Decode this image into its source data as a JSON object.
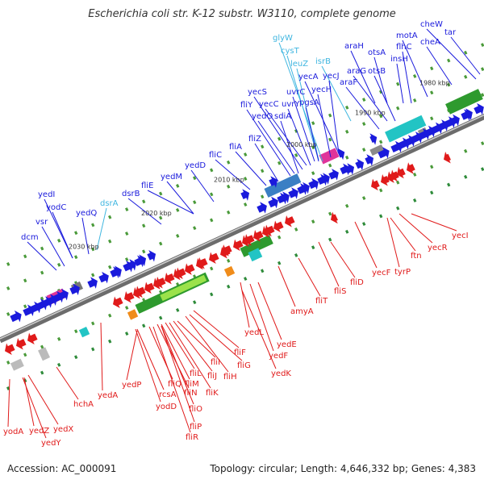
{
  "header": {
    "title": "Escherichia coli str. K-12 substr. W3110, complete genome"
  },
  "footer": {
    "accession": "Accession: AC_000091",
    "topology": "Topology: circular; Length: 4,646,332 bp; Genes: 4,383"
  },
  "colors": {
    "plus_strand_label": "#1a1adc",
    "rna_label": "#3fb6e0",
    "minus_strand_label": "#e01a1a",
    "backbone": "#888888"
  },
  "kbp_ticks": [
    "1980 kbp",
    "1990 kbp",
    "2000 kbp",
    "2010 kbp",
    "2020 kbp",
    "2030 kbp"
  ],
  "genes_top": [
    {
      "name": "cheW",
      "color": "blue"
    },
    {
      "name": "tar",
      "color": "blue"
    },
    {
      "name": "motA",
      "color": "blue"
    },
    {
      "name": "cheA",
      "color": "blue"
    },
    {
      "name": "flhC",
      "color": "blue"
    },
    {
      "name": "araH",
      "color": "blue"
    },
    {
      "name": "otsA",
      "color": "blue"
    },
    {
      "name": "insH",
      "color": "blue"
    },
    {
      "name": "araG",
      "color": "blue"
    },
    {
      "name": "otsB",
      "color": "blue"
    },
    {
      "name": "araF",
      "color": "blue"
    },
    {
      "name": "glyW",
      "color": "rna"
    },
    {
      "name": "cysT",
      "color": "rna"
    },
    {
      "name": "leuZ",
      "color": "rna"
    },
    {
      "name": "isrB",
      "color": "rna"
    },
    {
      "name": "yecA",
      "color": "blue"
    },
    {
      "name": "yecJ",
      "color": "blue"
    },
    {
      "name": "yecH",
      "color": "blue"
    },
    {
      "name": "uvrC",
      "color": "blue"
    },
    {
      "name": "yecS",
      "color": "blue"
    },
    {
      "name": "yecC",
      "color": "blue"
    },
    {
      "name": "uvrY",
      "color": "blue"
    },
    {
      "name": "pgsA",
      "color": "blue"
    },
    {
      "name": "fliY",
      "color": "blue"
    },
    {
      "name": "yedO",
      "color": "blue"
    },
    {
      "name": "sdiA",
      "color": "blue"
    },
    {
      "name": "fliZ",
      "color": "blue"
    },
    {
      "name": "fliA",
      "color": "blue"
    },
    {
      "name": "fliC",
      "color": "blue"
    },
    {
      "name": "yedD",
      "color": "blue"
    },
    {
      "name": "yedM",
      "color": "blue"
    },
    {
      "name": "fliE",
      "color": "blue"
    },
    {
      "name": "dsrB",
      "color": "blue"
    },
    {
      "name": "dsrA",
      "color": "rna"
    },
    {
      "name": "yedI",
      "color": "blue"
    },
    {
      "name": "yodC",
      "color": "blue"
    },
    {
      "name": "yedQ",
      "color": "blue"
    },
    {
      "name": "vsr",
      "color": "blue"
    },
    {
      "name": "dcm",
      "color": "blue"
    }
  ],
  "genes_bottom": [
    {
      "name": "yecI"
    },
    {
      "name": "yecR"
    },
    {
      "name": "ftn"
    },
    {
      "name": "tyrP"
    },
    {
      "name": "yecF"
    },
    {
      "name": "fliD"
    },
    {
      "name": "fliS"
    },
    {
      "name": "fliT"
    },
    {
      "name": "amyA"
    },
    {
      "name": "yedE"
    },
    {
      "name": "yedF"
    },
    {
      "name": "yedL"
    },
    {
      "name": "yedK"
    },
    {
      "name": "fliF"
    },
    {
      "name": "fliG"
    },
    {
      "name": "fliH"
    },
    {
      "name": "fliI"
    },
    {
      "name": "fliJ"
    },
    {
      "name": "fliK"
    },
    {
      "name": "fliL"
    },
    {
      "name": "fliM"
    },
    {
      "name": "fliN"
    },
    {
      "name": "fliO"
    },
    {
      "name": "fliP"
    },
    {
      "name": "fliQ"
    },
    {
      "name": "fliR"
    },
    {
      "name": "rcsA"
    },
    {
      "name": "yodD"
    },
    {
      "name": "yedP"
    },
    {
      "name": "yedA"
    },
    {
      "name": "hchA"
    },
    {
      "name": "yedX"
    },
    {
      "name": "yedZ"
    },
    {
      "name": "yedY"
    },
    {
      "name": "yodA"
    }
  ]
}
